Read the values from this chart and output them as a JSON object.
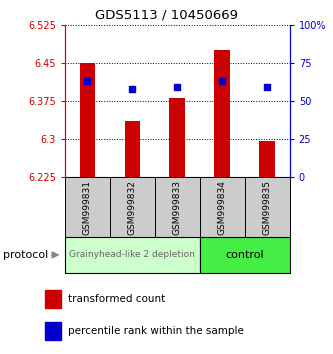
{
  "title": "GDS5113 / 10450669",
  "samples": [
    "GSM999831",
    "GSM999832",
    "GSM999833",
    "GSM999834",
    "GSM999835"
  ],
  "bar_values": [
    6.45,
    6.335,
    6.38,
    6.475,
    6.295
  ],
  "bar_bottom": 6.225,
  "percentile_values": [
    63,
    58,
    59,
    63,
    59
  ],
  "ylim_left": [
    6.225,
    6.525
  ],
  "ylim_right": [
    0,
    100
  ],
  "yticks_left": [
    6.225,
    6.3,
    6.375,
    6.45,
    6.525
  ],
  "ytick_labels_left": [
    "6.225",
    "6.3",
    "6.375",
    "6.45",
    "6.525"
  ],
  "yticks_right": [
    0,
    25,
    50,
    75,
    100
  ],
  "ytick_labels_right": [
    "0",
    "25",
    "50",
    "75",
    "100%"
  ],
  "bar_color": "#cc0000",
  "percentile_color": "#0000cc",
  "group1_label": "Grainyhead-like 2 depletion",
  "group2_label": "control",
  "group1_color": "#ccffcc",
  "group2_color": "#44ee44",
  "group1_samples": [
    0,
    1,
    2
  ],
  "group2_samples": [
    3,
    4
  ],
  "protocol_label": "protocol",
  "legend_bar_label": "transformed count",
  "legend_pct_label": "percentile rank within the sample",
  "left_axis_color": "#cc0000",
  "right_axis_color": "#0000cc",
  "sample_box_color": "#cccccc",
  "grid_linestyle": ":",
  "bar_width": 0.35
}
